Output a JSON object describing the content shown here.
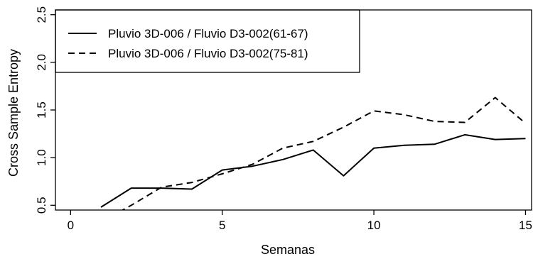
{
  "chart_data": {
    "type": "line",
    "xlabel": "Semanas",
    "ylabel": "Cross Sample Entropy",
    "xlim": [
      -0.5,
      15.2
    ],
    "ylim": [
      0.45,
      2.55
    ],
    "xticks": [
      0,
      5,
      10,
      15
    ],
    "yticks": [
      0.5,
      1.0,
      1.5,
      2.0,
      2.5
    ],
    "xtick_labels": [
      "0",
      "5",
      "10",
      "15"
    ],
    "ytick_labels": [
      "0.5",
      "1.0",
      "1.5",
      "2.0",
      "2.5"
    ],
    "grid": false,
    "legend_position": "top-left",
    "series": [
      {
        "name": "Pluvio 3D-006 / Fluvio D3-002(61-67)",
        "line_style": "solid",
        "color": "#000000",
        "x": [
          1,
          2,
          3,
          4,
          5,
          6,
          7,
          8,
          9,
          10,
          11,
          12,
          13,
          14,
          15
        ],
        "y": [
          0.48,
          0.68,
          0.68,
          0.67,
          0.87,
          0.91,
          0.98,
          1.08,
          0.81,
          1.1,
          1.13,
          1.14,
          1.24,
          1.19,
          1.2
        ]
      },
      {
        "name": "Pluvio 3D-006 / Fluvio D3-002(75-81)",
        "line_style": "dashed",
        "color": "#000000",
        "x": [
          1.6,
          2,
          3,
          4,
          5,
          6,
          7,
          8,
          9,
          10,
          11,
          12,
          13,
          14,
          15
        ],
        "y": [
          0.43,
          0.5,
          0.69,
          0.74,
          0.83,
          0.93,
          1.1,
          1.17,
          1.32,
          1.49,
          1.45,
          1.38,
          1.37,
          1.63,
          1.36
        ]
      }
    ]
  }
}
